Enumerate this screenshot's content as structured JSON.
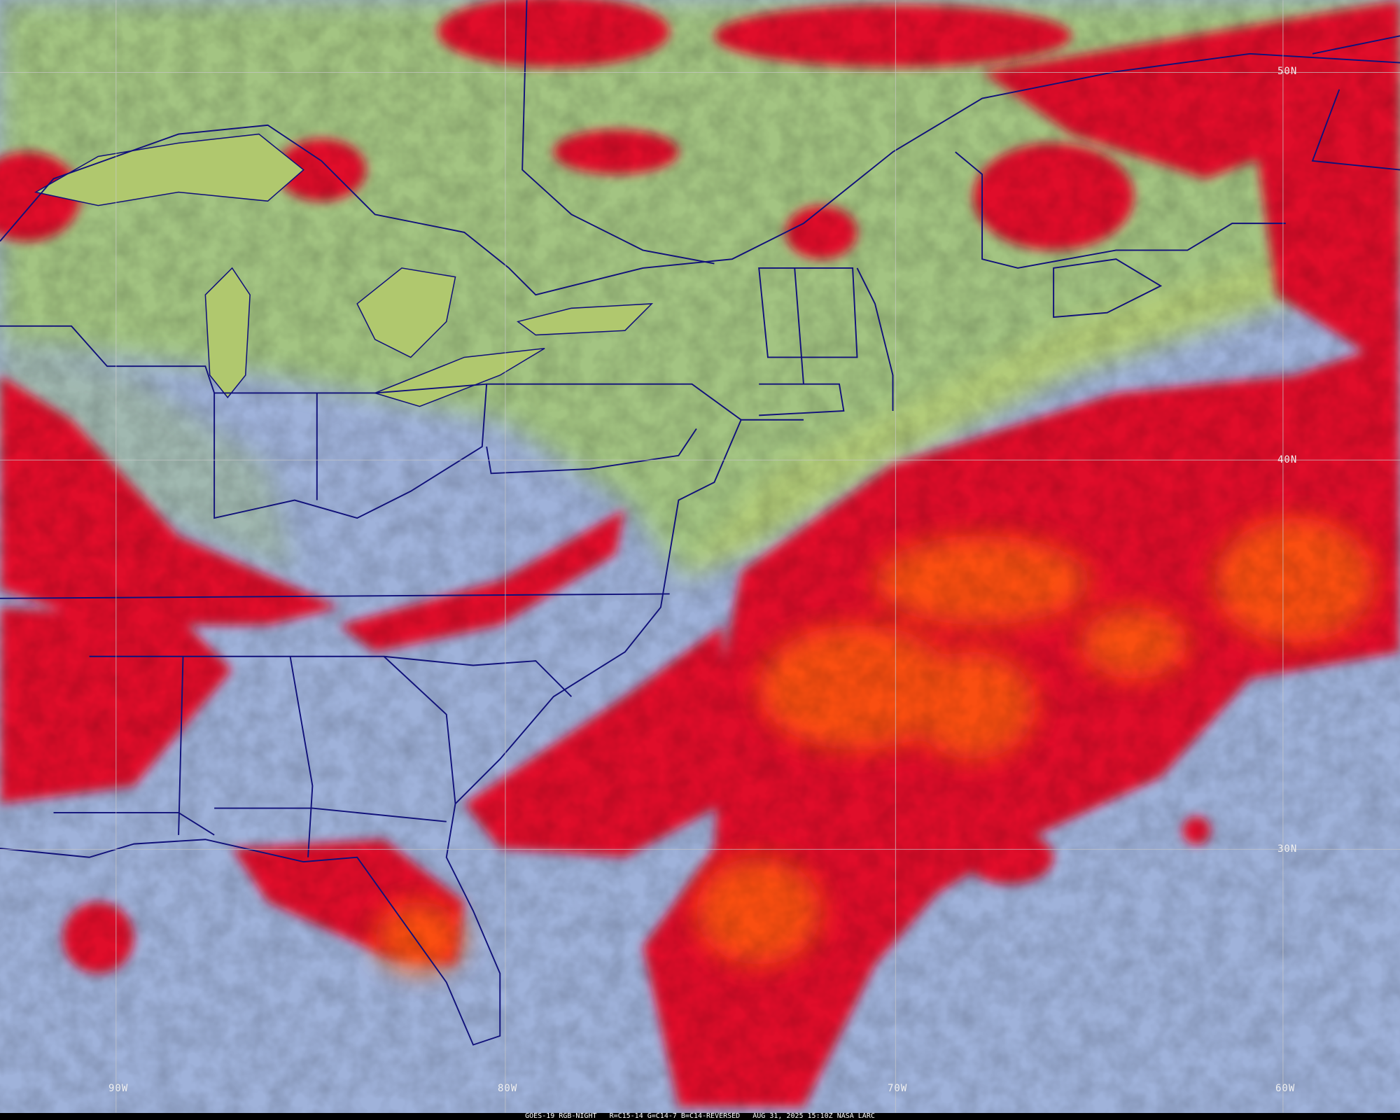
{
  "caption": {
    "satellite": "GOES-19",
    "product": "RGB-NIGHT",
    "recipe": "R=C15-14 G=C14-7 B=C14-REVERSED",
    "datetime": "AUG 31, 2025 15:10Z",
    "credit": "NASA LARC"
  },
  "latitude_labels": [
    "50N",
    "40N",
    "30N"
  ],
  "longitude_labels": [
    "90W",
    "80W",
    "70W",
    "60W"
  ],
  "colors": {
    "clear_land": "#9fb2da",
    "low_cloud_fog": "#a9c67e",
    "high_cold_cloud": "#e0102a",
    "deep_convection": "#ff5a10",
    "borders": "#10107a",
    "grid": "#c8c8c8"
  }
}
